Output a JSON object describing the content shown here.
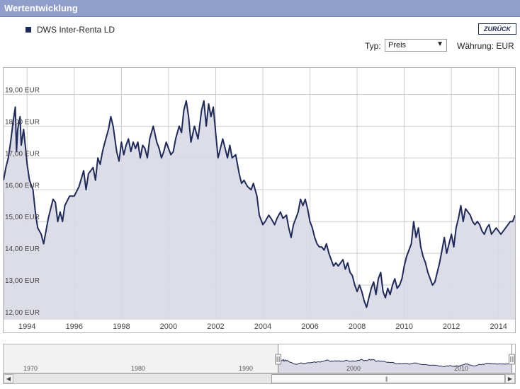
{
  "header": {
    "title": "Wertentwicklung"
  },
  "legend": {
    "series_name": "DWS Inter-Renta LD"
  },
  "toolbar": {
    "back_label": "ZURÜCK",
    "type_label": "Typ:",
    "type_value": "Preis",
    "currency_label": "Währung: EUR"
  },
  "colors": {
    "line": "#1f2a5c",
    "area": "#d8d9e4",
    "header": "#8f9ecb",
    "grid": "#cccccc"
  },
  "chart_data": {
    "type": "area",
    "series": [
      {
        "name": "DWS Inter-Renta LD",
        "points": [
          [
            1993.0,
            16.3
          ],
          [
            1993.1,
            16.7
          ],
          [
            1993.2,
            17.0
          ],
          [
            1993.3,
            17.5
          ],
          [
            1993.4,
            18.1
          ],
          [
            1993.5,
            18.6
          ],
          [
            1993.55,
            17.2
          ],
          [
            1993.6,
            17.9
          ],
          [
            1993.7,
            18.3
          ],
          [
            1993.75,
            17.4
          ],
          [
            1993.85,
            17.9
          ],
          [
            1993.95,
            17.2
          ],
          [
            1994.0,
            16.8
          ],
          [
            1994.1,
            16.3
          ],
          [
            1994.25,
            16.0
          ],
          [
            1994.35,
            15.3
          ],
          [
            1994.45,
            14.8
          ],
          [
            1994.6,
            14.6
          ],
          [
            1994.7,
            14.3
          ],
          [
            1994.8,
            14.7
          ],
          [
            1994.9,
            15.1
          ],
          [
            1995.0,
            15.4
          ],
          [
            1995.1,
            15.7
          ],
          [
            1995.2,
            15.6
          ],
          [
            1995.3,
            15.0
          ],
          [
            1995.4,
            15.3
          ],
          [
            1995.5,
            15.0
          ],
          [
            1995.6,
            15.5
          ],
          [
            1995.8,
            15.8
          ],
          [
            1996.0,
            15.8
          ],
          [
            1996.2,
            16.1
          ],
          [
            1996.4,
            16.6
          ],
          [
            1996.5,
            16.0
          ],
          [
            1996.6,
            16.5
          ],
          [
            1996.8,
            16.7
          ],
          [
            1996.9,
            16.3
          ],
          [
            1997.0,
            17.0
          ],
          [
            1997.1,
            16.8
          ],
          [
            1997.2,
            17.2
          ],
          [
            1997.3,
            17.5
          ],
          [
            1997.45,
            17.9
          ],
          [
            1997.55,
            18.3
          ],
          [
            1997.65,
            18.0
          ],
          [
            1997.8,
            17.2
          ],
          [
            1997.9,
            16.9
          ],
          [
            1998.0,
            17.5
          ],
          [
            1998.1,
            17.1
          ],
          [
            1998.2,
            17.4
          ],
          [
            1998.3,
            17.6
          ],
          [
            1998.4,
            17.2
          ],
          [
            1998.5,
            17.5
          ],
          [
            1998.6,
            17.3
          ],
          [
            1998.7,
            17.5
          ],
          [
            1998.8,
            17.0
          ],
          [
            1998.9,
            17.4
          ],
          [
            1999.0,
            17.3
          ],
          [
            1999.1,
            17.0
          ],
          [
            1999.2,
            17.6
          ],
          [
            1999.35,
            18.0
          ],
          [
            1999.5,
            17.5
          ],
          [
            1999.6,
            17.3
          ],
          [
            1999.7,
            17.0
          ],
          [
            1999.8,
            17.2
          ],
          [
            1999.9,
            17.5
          ],
          [
            2000.0,
            17.3
          ],
          [
            2000.1,
            17.1
          ],
          [
            2000.2,
            17.2
          ],
          [
            2000.3,
            17.6
          ],
          [
            2000.45,
            18.0
          ],
          [
            2000.55,
            17.8
          ],
          [
            2000.65,
            18.5
          ],
          [
            2000.75,
            18.8
          ],
          [
            2000.85,
            18.3
          ],
          [
            2000.95,
            17.5
          ],
          [
            2001.1,
            18.0
          ],
          [
            2001.25,
            17.6
          ],
          [
            2001.4,
            18.5
          ],
          [
            2001.5,
            18.8
          ],
          [
            2001.6,
            18.0
          ],
          [
            2001.7,
            18.7
          ],
          [
            2001.8,
            18.3
          ],
          [
            2001.9,
            18.6
          ],
          [
            2002.0,
            17.8
          ],
          [
            2002.1,
            17.0
          ],
          [
            2002.2,
            17.3
          ],
          [
            2002.3,
            17.6
          ],
          [
            2002.4,
            17.3
          ],
          [
            2002.5,
            17.0
          ],
          [
            2002.6,
            17.4
          ],
          [
            2002.7,
            17.0
          ],
          [
            2002.85,
            17.1
          ],
          [
            2003.0,
            16.5
          ],
          [
            2003.1,
            16.2
          ],
          [
            2003.2,
            16.3
          ],
          [
            2003.35,
            16.1
          ],
          [
            2003.5,
            16.0
          ],
          [
            2003.6,
            16.2
          ],
          [
            2003.75,
            15.8
          ],
          [
            2003.85,
            15.2
          ],
          [
            2004.0,
            14.9
          ],
          [
            2004.1,
            15.0
          ],
          [
            2004.25,
            15.2
          ],
          [
            2004.35,
            15.1
          ],
          [
            2004.5,
            14.9
          ],
          [
            2004.6,
            15.1
          ],
          [
            2004.75,
            15.3
          ],
          [
            2004.85,
            15.1
          ],
          [
            2005.0,
            15.2
          ],
          [
            2005.1,
            14.8
          ],
          [
            2005.2,
            14.5
          ],
          [
            2005.3,
            14.9
          ],
          [
            2005.4,
            15.1
          ],
          [
            2005.5,
            15.3
          ],
          [
            2005.6,
            15.7
          ],
          [
            2005.7,
            15.5
          ],
          [
            2005.8,
            15.7
          ],
          [
            2005.9,
            15.4
          ],
          [
            2006.0,
            15.0
          ],
          [
            2006.1,
            14.8
          ],
          [
            2006.2,
            14.5
          ],
          [
            2006.3,
            14.3
          ],
          [
            2006.4,
            14.2
          ],
          [
            2006.5,
            14.2
          ],
          [
            2006.6,
            14.1
          ],
          [
            2006.7,
            14.3
          ],
          [
            2006.8,
            14.0
          ],
          [
            2006.9,
            13.8
          ],
          [
            2007.0,
            13.6
          ],
          [
            2007.1,
            13.7
          ],
          [
            2007.2,
            13.6
          ],
          [
            2007.3,
            13.7
          ],
          [
            2007.4,
            13.8
          ],
          [
            2007.5,
            13.5
          ],
          [
            2007.6,
            13.7
          ],
          [
            2007.7,
            13.4
          ],
          [
            2007.8,
            13.3
          ],
          [
            2007.9,
            13.0
          ],
          [
            2008.0,
            12.8
          ],
          [
            2008.1,
            13.0
          ],
          [
            2008.2,
            12.8
          ],
          [
            2008.3,
            12.5
          ],
          [
            2008.4,
            12.3
          ],
          [
            2008.5,
            12.6
          ],
          [
            2008.6,
            12.9
          ],
          [
            2008.7,
            13.1
          ],
          [
            2008.8,
            12.7
          ],
          [
            2008.9,
            13.2
          ],
          [
            2009.0,
            13.4
          ],
          [
            2009.1,
            12.8
          ],
          [
            2009.2,
            12.6
          ],
          [
            2009.3,
            12.9
          ],
          [
            2009.4,
            12.7
          ],
          [
            2009.5,
            13.0
          ],
          [
            2009.6,
            13.2
          ],
          [
            2009.7,
            12.9
          ],
          [
            2009.8,
            13.0
          ],
          [
            2009.9,
            13.2
          ],
          [
            2010.0,
            13.6
          ],
          [
            2010.1,
            13.9
          ],
          [
            2010.2,
            14.1
          ],
          [
            2010.3,
            14.3
          ],
          [
            2010.4,
            15.0
          ],
          [
            2010.5,
            14.5
          ],
          [
            2010.6,
            14.8
          ],
          [
            2010.7,
            14.2
          ],
          [
            2010.8,
            13.9
          ],
          [
            2010.9,
            13.7
          ],
          [
            2011.0,
            13.4
          ],
          [
            2011.1,
            13.2
          ],
          [
            2011.2,
            13.0
          ],
          [
            2011.3,
            13.1
          ],
          [
            2011.4,
            13.4
          ],
          [
            2011.5,
            13.7
          ],
          [
            2011.6,
            14.1
          ],
          [
            2011.7,
            14.5
          ],
          [
            2011.8,
            14.0
          ],
          [
            2011.9,
            14.3
          ],
          [
            2012.0,
            14.6
          ],
          [
            2012.1,
            14.2
          ],
          [
            2012.2,
            14.8
          ],
          [
            2012.3,
            15.1
          ],
          [
            2012.4,
            15.5
          ],
          [
            2012.5,
            15.0
          ],
          [
            2012.6,
            15.4
          ],
          [
            2012.7,
            15.3
          ],
          [
            2012.8,
            15.2
          ],
          [
            2012.9,
            15.0
          ],
          [
            2013.0,
            14.9
          ],
          [
            2013.1,
            15.0
          ],
          [
            2013.2,
            14.9
          ],
          [
            2013.3,
            14.7
          ],
          [
            2013.4,
            14.6
          ],
          [
            2013.5,
            14.8
          ],
          [
            2013.6,
            14.9
          ],
          [
            2013.7,
            14.6
          ],
          [
            2013.8,
            14.7
          ],
          [
            2013.9,
            14.8
          ],
          [
            2014.0,
            14.7
          ],
          [
            2014.1,
            14.6
          ],
          [
            2014.2,
            14.7
          ],
          [
            2014.3,
            14.8
          ],
          [
            2014.4,
            14.9
          ],
          [
            2014.5,
            15.0
          ],
          [
            2014.6,
            15.0
          ],
          [
            2014.7,
            15.2
          ]
        ]
      }
    ],
    "xlim": [
      1993.0,
      2014.7
    ],
    "ylim": [
      12.0,
      19.5
    ],
    "y_ticks": [
      {
        "value": 12,
        "label": "12,00 EUR"
      },
      {
        "value": 13,
        "label": "13,00 EUR"
      },
      {
        "value": 14,
        "label": "14,00 EUR"
      },
      {
        "value": 15,
        "label": "15,00 EUR"
      },
      {
        "value": 16,
        "label": "16,00 EUR"
      },
      {
        "value": 17,
        "label": "17,00 EUR"
      },
      {
        "value": 18,
        "label": "18,00 EUR"
      },
      {
        "value": 19,
        "label": "19,00 EUR"
      }
    ],
    "x_ticks": [
      {
        "value": 1994,
        "label": "1994"
      },
      {
        "value": 1996,
        "label": "1996"
      },
      {
        "value": 1998,
        "label": "1998"
      },
      {
        "value": 2000,
        "label": "2000"
      },
      {
        "value": 2002,
        "label": "2002"
      },
      {
        "value": 2004,
        "label": "2004"
      },
      {
        "value": 2006,
        "label": "2006"
      },
      {
        "value": 2008,
        "label": "2008"
      },
      {
        "value": 2010,
        "label": "2010"
      },
      {
        "value": 2012,
        "label": "2012"
      },
      {
        "value": 2014,
        "label": "2014"
      }
    ],
    "grid": true,
    "navigator": {
      "xlim": [
        1967.5,
        2015.0
      ],
      "selected_range": [
        1993.0,
        2014.7
      ],
      "x_ticks": [
        {
          "value": 1970,
          "label": "1970"
        },
        {
          "value": 1980,
          "label": "1980"
        },
        {
          "value": 1990,
          "label": "1990"
        },
        {
          "value": 2000,
          "label": "2000"
        },
        {
          "value": 2010,
          "label": "2010"
        }
      ]
    }
  }
}
